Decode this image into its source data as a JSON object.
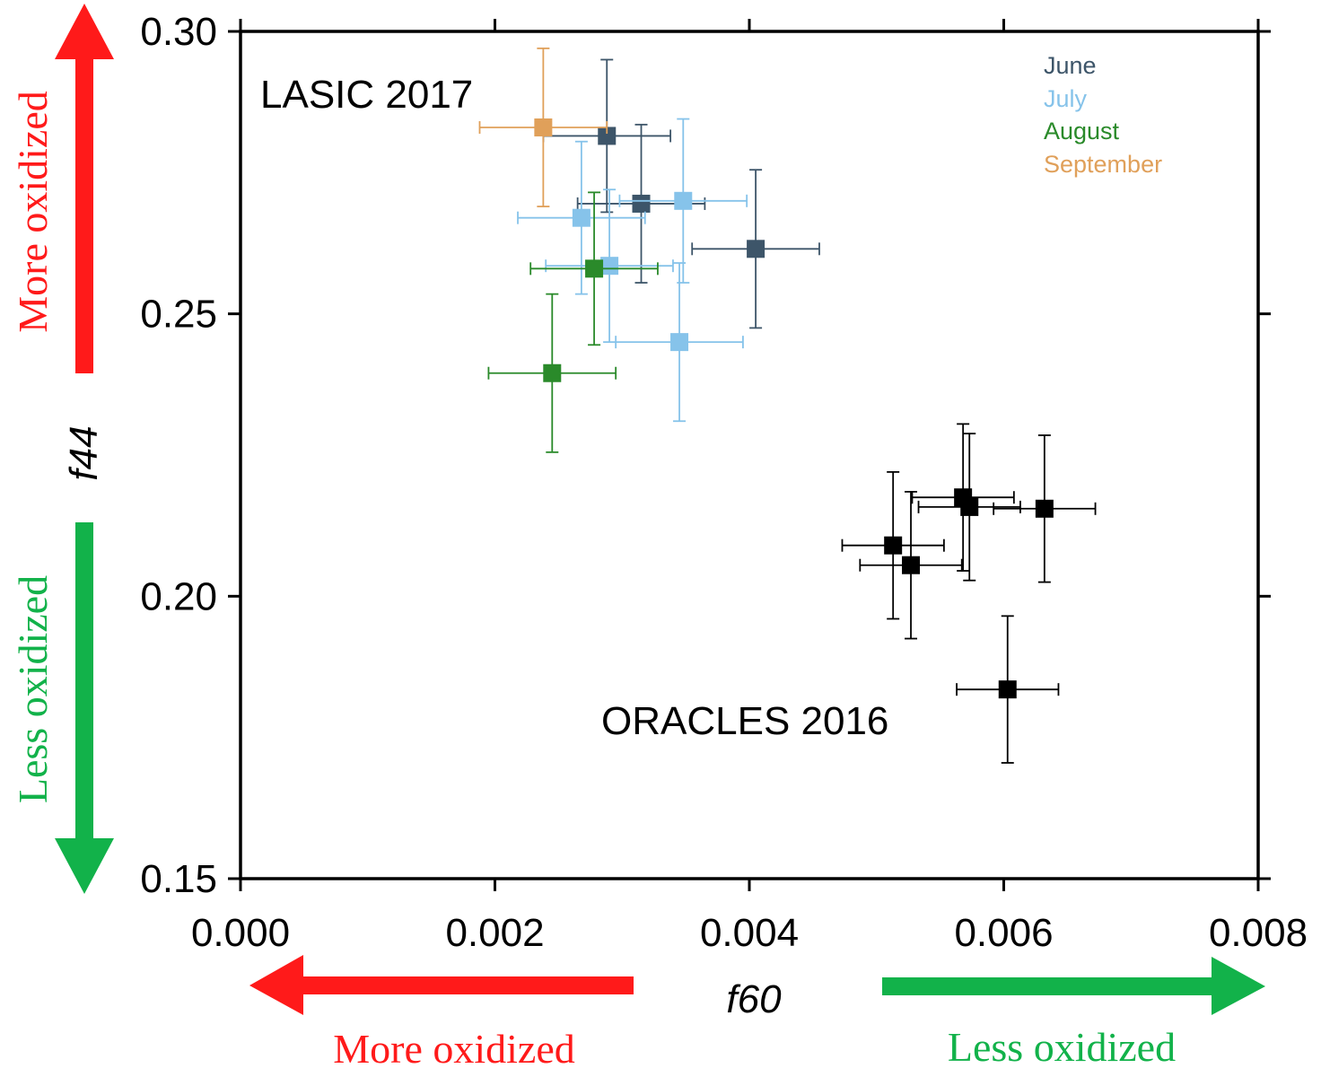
{
  "colors": {
    "june": "#3d5569",
    "july": "#86c3ea",
    "august": "#2a8a2a",
    "september": "#e0a05a",
    "oracles": "#000000",
    "more_oxidized": "#ff1a1a",
    "less_oxidized": "#12b24a"
  },
  "annotations": {
    "more_oxidized_y": "More oxidized",
    "less_oxidized_y": "Less oxidized",
    "more_oxidized_x": "More oxidized",
    "less_oxidized_x": "Less oxidized"
  },
  "chart_data": {
    "type": "scatter",
    "title": "",
    "xlabel": "f60",
    "ylabel": "f44",
    "xlim": [
      0.0,
      0.008
    ],
    "ylim": [
      0.15,
      0.3
    ],
    "x_ticks": [
      "0.000",
      "0.002",
      "0.004",
      "0.006",
      "0.008"
    ],
    "y_ticks": [
      "0.15",
      "0.20",
      "0.25",
      "0.30"
    ],
    "grid": false,
    "legend_position": "top-right",
    "legend": [
      "June",
      "July",
      "August",
      "September"
    ],
    "group_labels": [
      "LASIC 2017",
      "ORACLES 2016"
    ],
    "series": [
      {
        "name": "June",
        "color": "#3d5569",
        "points": [
          {
            "x": 0.00288,
            "y": 0.2815,
            "xerr": 0.0005,
            "yerr": 0.0135
          },
          {
            "x": 0.00315,
            "y": 0.2695,
            "xerr": 0.0005,
            "yerr": 0.014
          },
          {
            "x": 0.00405,
            "y": 0.2615,
            "xerr": 0.0005,
            "yerr": 0.014
          }
        ]
      },
      {
        "name": "July",
        "color": "#86c3ea",
        "points": [
          {
            "x": 0.00268,
            "y": 0.267,
            "xerr": 0.0005,
            "yerr": 0.0135
          },
          {
            "x": 0.00348,
            "y": 0.27,
            "xerr": 0.0005,
            "yerr": 0.0145
          },
          {
            "x": 0.0029,
            "y": 0.2585,
            "xerr": 0.0005,
            "yerr": 0.0135
          },
          {
            "x": 0.00345,
            "y": 0.245,
            "xerr": 0.0005,
            "yerr": 0.014
          }
        ]
      },
      {
        "name": "August",
        "color": "#2a8a2a",
        "points": [
          {
            "x": 0.00278,
            "y": 0.258,
            "xerr": 0.0005,
            "yerr": 0.0135
          },
          {
            "x": 0.00245,
            "y": 0.2395,
            "xerr": 0.0005,
            "yerr": 0.014
          }
        ]
      },
      {
        "name": "September",
        "color": "#e0a05a",
        "points": [
          {
            "x": 0.00238,
            "y": 0.283,
            "xerr": 0.0005,
            "yerr": 0.014
          }
        ]
      },
      {
        "name": "ORACLES 2016",
        "color": "#000000",
        "points": [
          {
            "x": 0.00568,
            "y": 0.2175,
            "xerr": 0.0004,
            "yerr": 0.013
          },
          {
            "x": 0.00573,
            "y": 0.2158,
            "xerr": 0.0004,
            "yerr": 0.013
          },
          {
            "x": 0.00632,
            "y": 0.2155,
            "xerr": 0.0004,
            "yerr": 0.013
          },
          {
            "x": 0.00513,
            "y": 0.209,
            "xerr": 0.0004,
            "yerr": 0.013
          },
          {
            "x": 0.00527,
            "y": 0.2055,
            "xerr": 0.0004,
            "yerr": 0.013
          },
          {
            "x": 0.00603,
            "y": 0.1835,
            "xerr": 0.0004,
            "yerr": 0.013
          }
        ]
      }
    ]
  }
}
